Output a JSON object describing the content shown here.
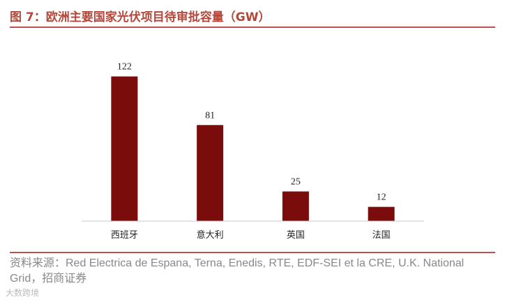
{
  "title": "图 7：欧洲主要国家光伏项目待审批容量（GW）",
  "source": "资料来源：Red Electrica de Espana, Terna, Enedis, RTE, EDF-SEI et la CRE, U.K. National Grid，招商证券",
  "watermark": "大数跨境",
  "colors": {
    "bar": "#7b0c0c",
    "accent": "#c0504d",
    "title": "#b5473a"
  },
  "chart_data": {
    "type": "bar",
    "title": "图 7：欧洲主要国家光伏项目待审批容量（GW）",
    "categories": [
      "西班牙",
      "意大利",
      "英国",
      "法国"
    ],
    "values": [
      122,
      81,
      25,
      12
    ],
    "ylim": [
      0,
      130
    ],
    "grid": false,
    "legend": "none"
  }
}
